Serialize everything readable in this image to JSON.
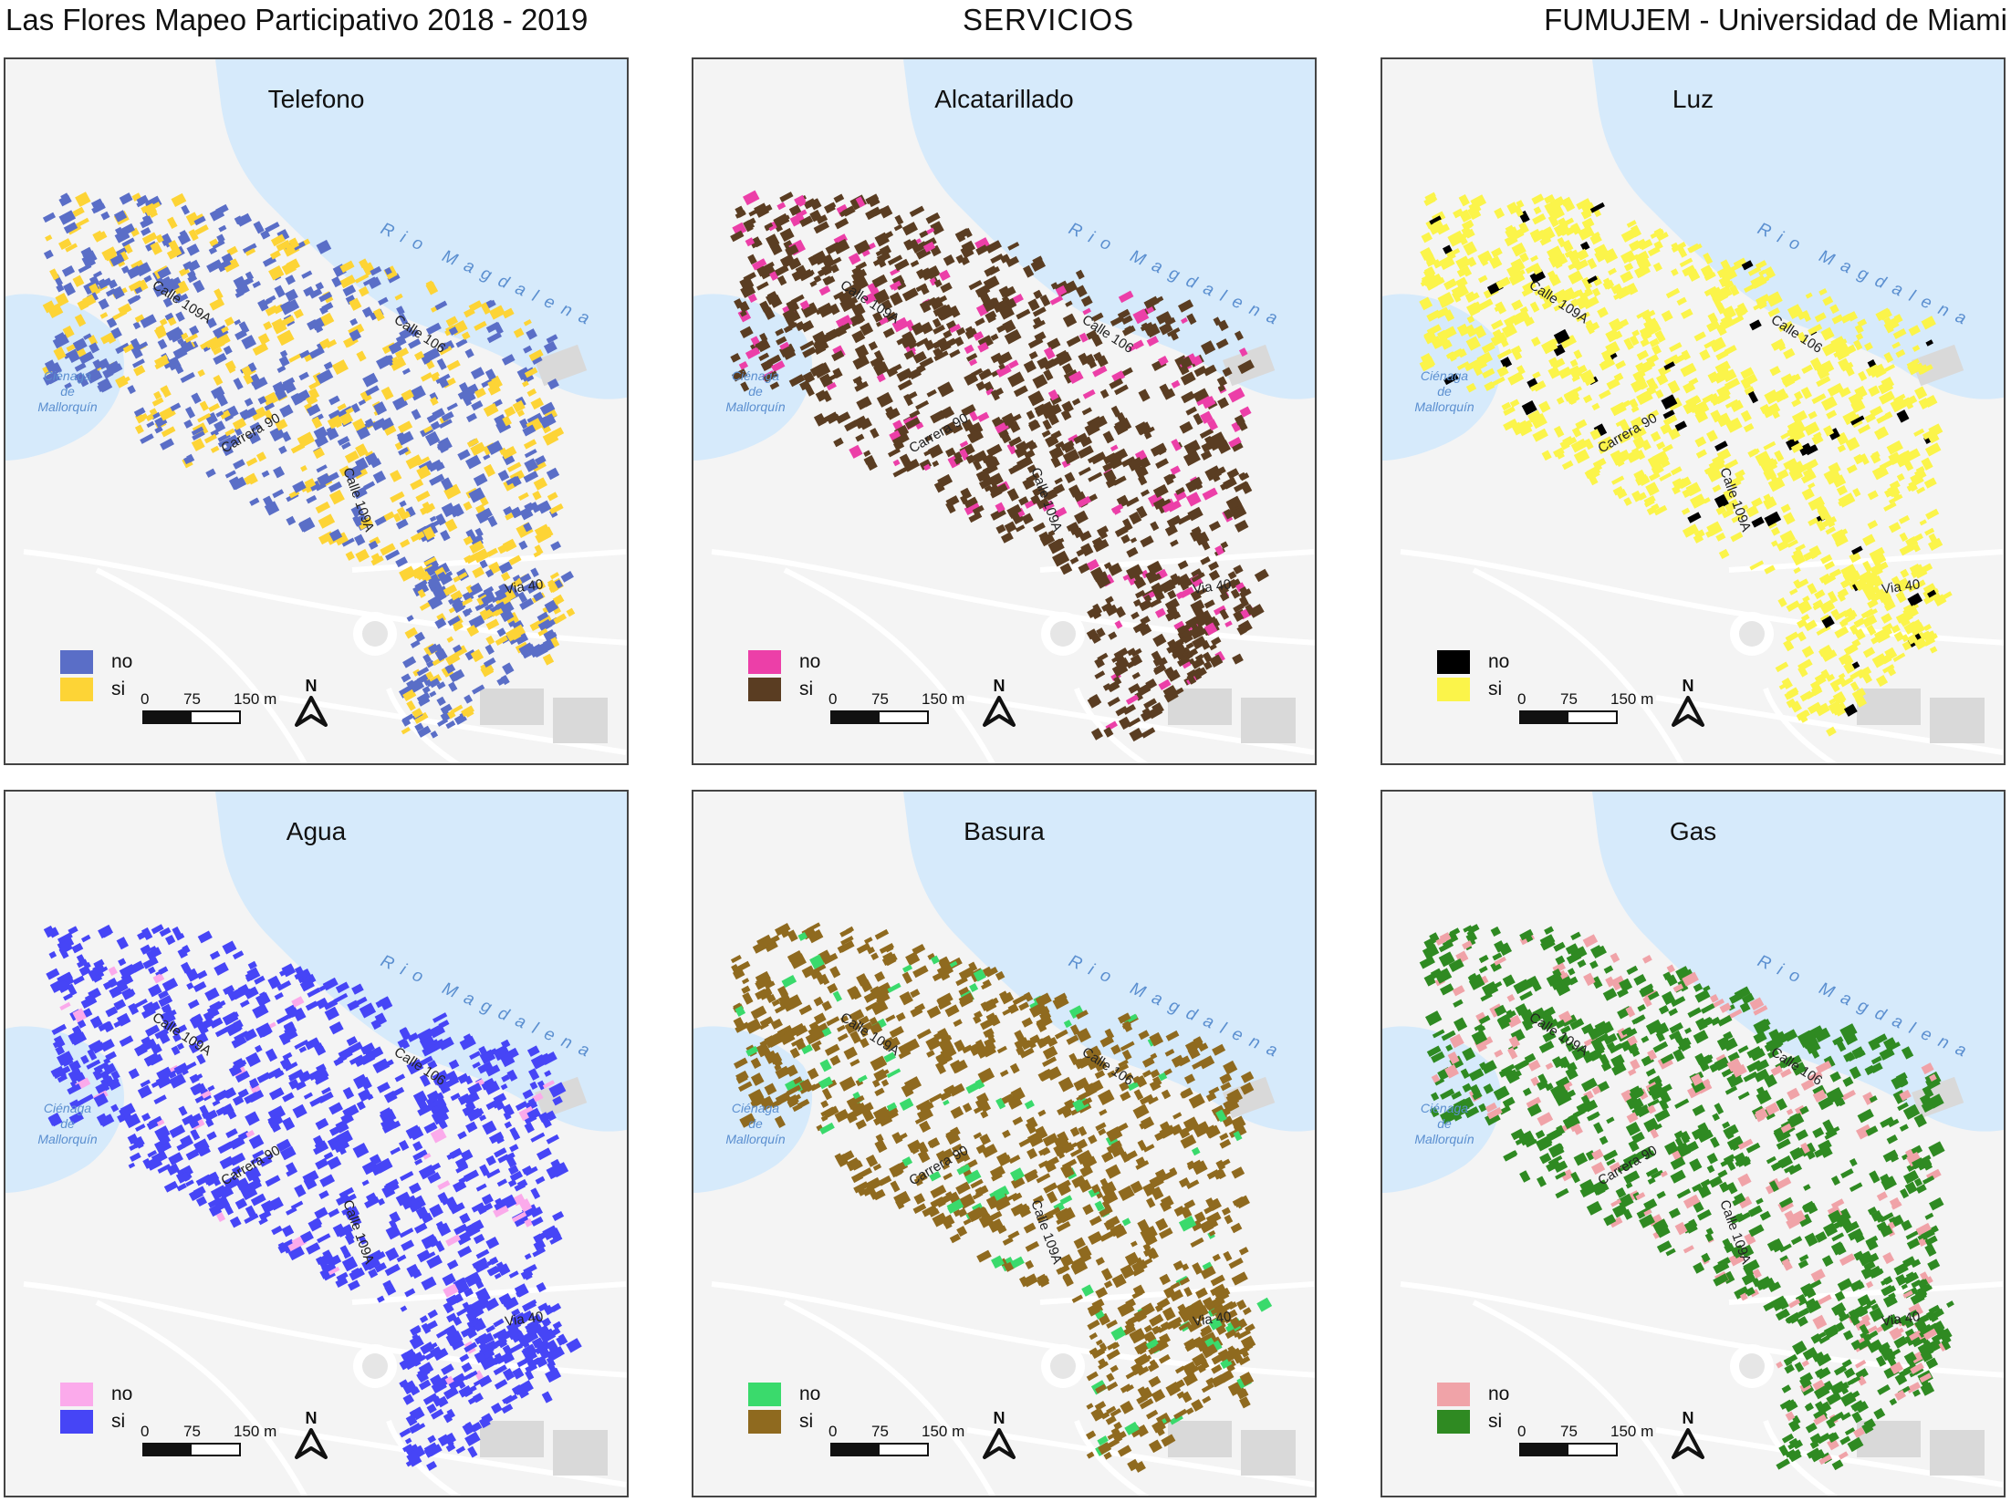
{
  "header": {
    "left": "Las Flores Mapeo Participativo 2018 - 2019",
    "center": "SERVICIOS",
    "right": "FUMUJEM - Universidad de Miami"
  },
  "map_labels": {
    "river": "Rio Magdalena",
    "lagoon": [
      "Ciénaga",
      "de",
      "Mallorquín"
    ],
    "streets": [
      "Calle 109A",
      "Calle 106",
      "Carrera 90",
      "Calle 109A",
      "Via 40"
    ]
  },
  "scale": {
    "t0": "0",
    "t1": "75",
    "t2": "150 m"
  },
  "north": "N",
  "panels": [
    {
      "title": "Telefono",
      "legend": [
        {
          "label": "no",
          "color": "#5a6ec7"
        },
        {
          "label": "si",
          "color": "#fdd436"
        }
      ],
      "no_share": 0.6
    },
    {
      "title": "Alcatarillado",
      "legend": [
        {
          "label": "no",
          "color": "#ec3fa8"
        },
        {
          "label": "si",
          "color": "#5a3d22"
        }
      ],
      "no_share": 0.15
    },
    {
      "title": "Luz",
      "legend": [
        {
          "label": "no",
          "color": "#000000"
        },
        {
          "label": "si",
          "color": "#fbf44a"
        }
      ],
      "no_share": 0.05
    },
    {
      "title": "Agua",
      "legend": [
        {
          "label": "no",
          "color": "#fbaaeb"
        },
        {
          "label": "si",
          "color": "#4645f6"
        }
      ],
      "no_share": 0.05
    },
    {
      "title": "Basura",
      "legend": [
        {
          "label": "no",
          "color": "#3ada6c"
        },
        {
          "label": "si",
          "color": "#8f6a1f"
        }
      ],
      "no_share": 0.08
    },
    {
      "title": "Gas",
      "legend": [
        {
          "label": "no",
          "color": "#f0a3a8"
        },
        {
          "label": "si",
          "color": "#2f8a22"
        }
      ],
      "no_share": 0.18
    }
  ]
}
